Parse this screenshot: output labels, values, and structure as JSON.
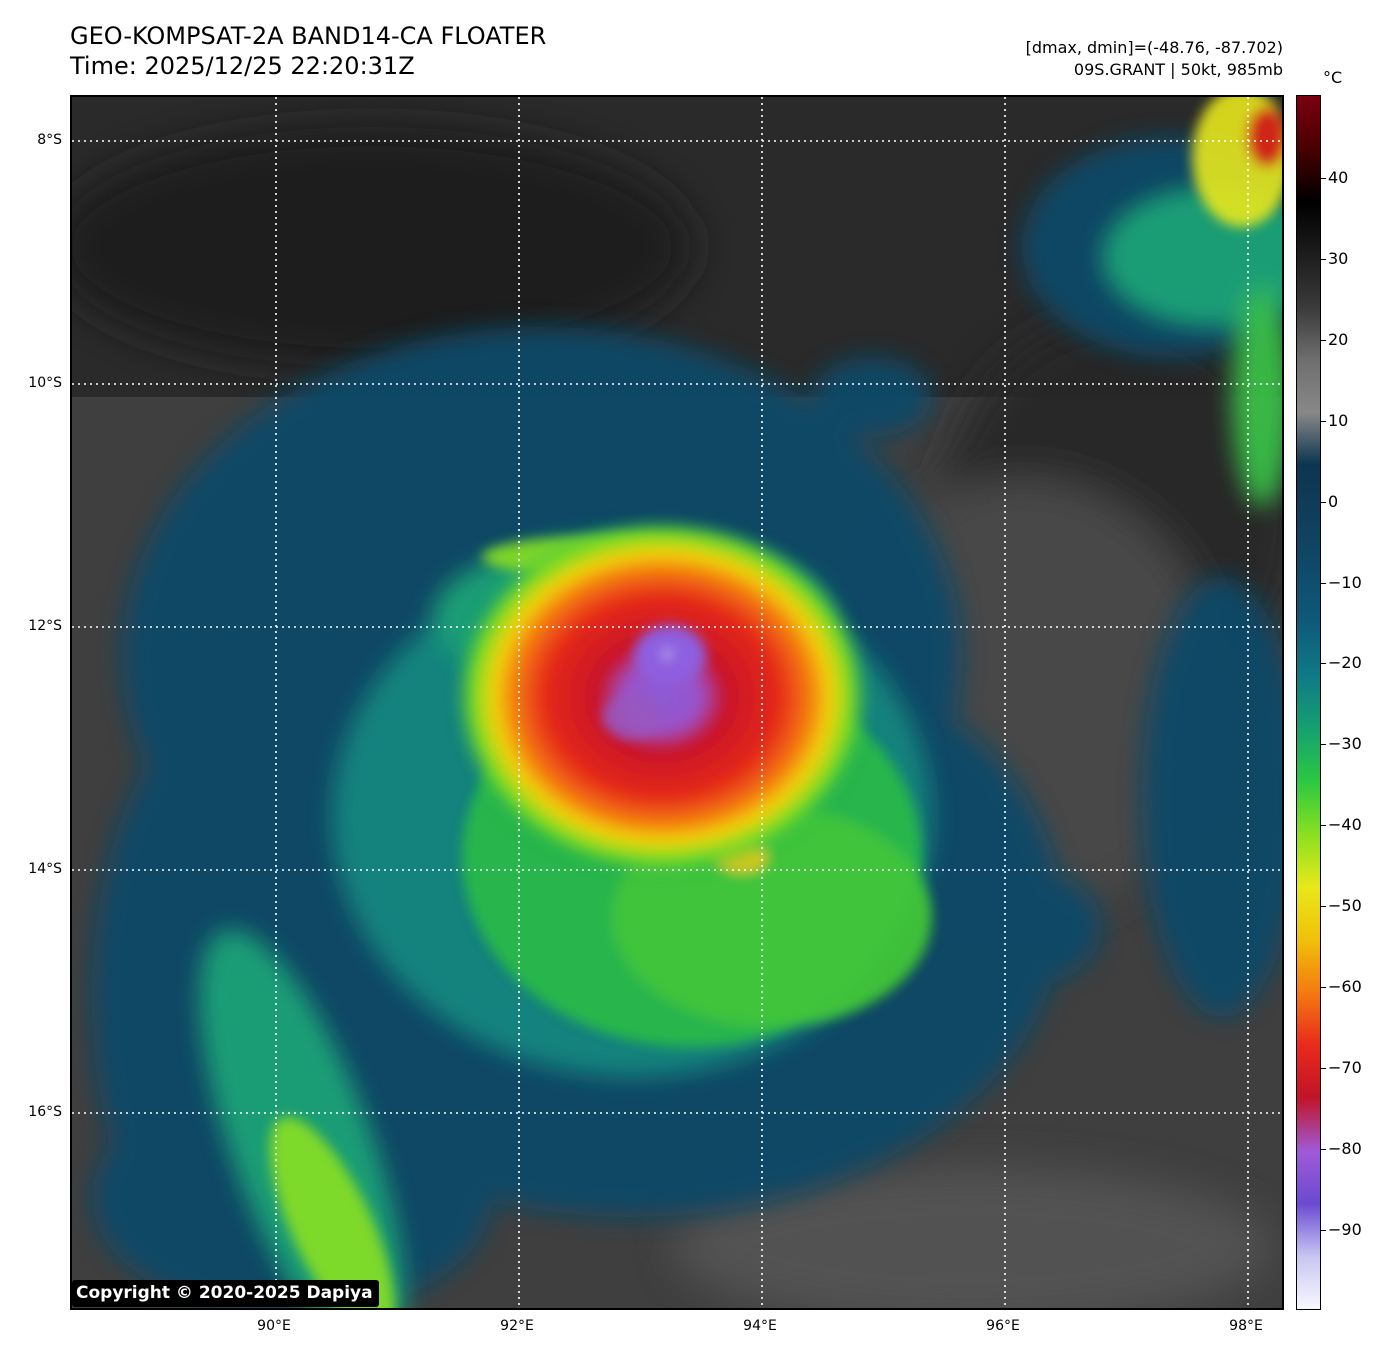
{
  "header": {
    "title_line1": "GEO-KOMPSAT-2A BAND14-CA FLOATER",
    "title_line2": "Time: 2025/12/25 22:20:31Z",
    "info_line1": "[dmax, dmin]=(-48.76, -87.702)",
    "info_line2": "09S.GRANT | 50kt, 985mb"
  },
  "map": {
    "lat_labels": [
      "8°S",
      "10°S",
      "12°S",
      "14°S",
      "16°S"
    ],
    "lon_labels": [
      "90°E",
      "92°E",
      "94°E",
      "96°E",
      "98°E"
    ],
    "gridlines": "dotted-white",
    "storm_center": {
      "lat": -12.2,
      "lon": 93.1
    }
  },
  "colorbar": {
    "unit": "°C",
    "tick_labels": [
      "40",
      "30",
      "20",
      "10",
      "0",
      "−10",
      "−20",
      "−30",
      "−40",
      "−50",
      "−60",
      "−70",
      "−80",
      "−90"
    ],
    "colors": [
      "#f8f8ff",
      "#c9c6f2",
      "#6b4ad1",
      "#a05ad8",
      "#c01428",
      "#e82a1c",
      "#f47a10",
      "#f0c00a",
      "#e8e81a",
      "#8ae020",
      "#2cc840",
      "#17a070",
      "#0f7a86",
      "#0f5a7a",
      "#0f4a6a",
      "#103e5a",
      "#0c3550",
      "#888888",
      "#6e6e6e",
      "#3a3a3a",
      "#1c1c1c",
      "#000000",
      "#4a0000",
      "#7a0010"
    ]
  },
  "footer": {
    "copyright": "Copyright © 2020-2025 Dapiya"
  }
}
